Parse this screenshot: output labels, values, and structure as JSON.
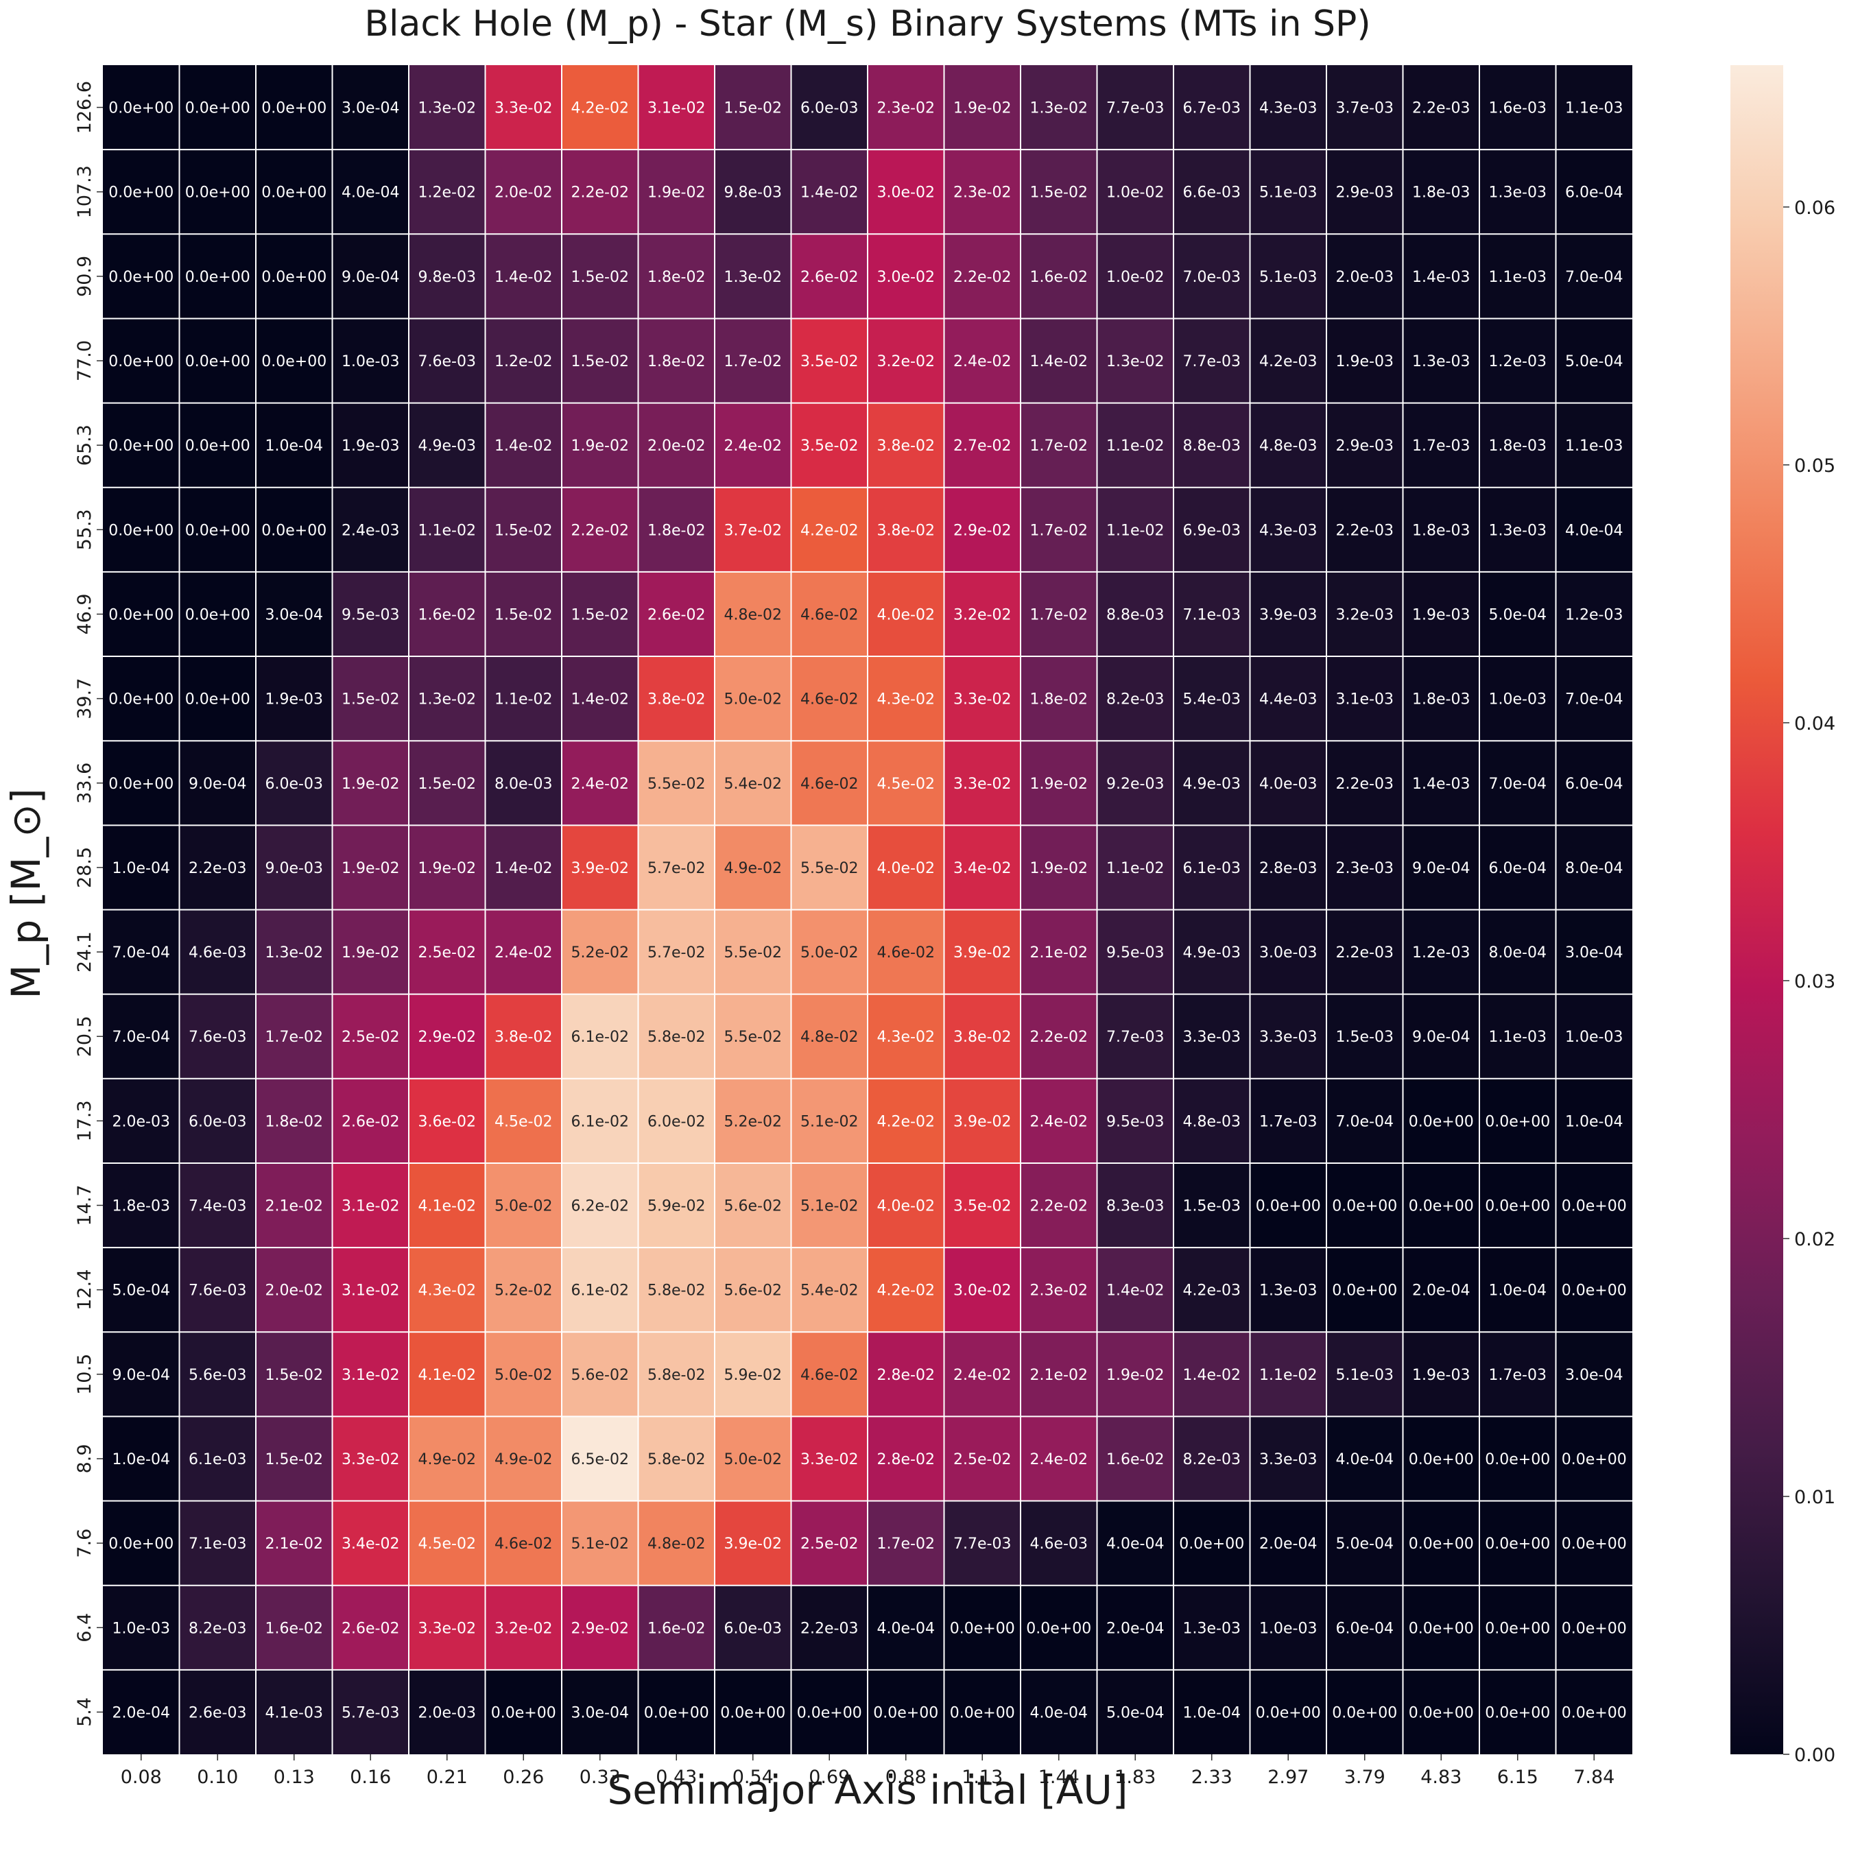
{
  "chart_data": {
    "type": "heatmap",
    "title": "Black Hole (M_p)  - Star (M_s) Binary Systems (MTs in SP)",
    "xlabel": "Semimajor Axis inital [AU]",
    "ylabel": "M_p  [M_⊙]",
    "x_categories": [
      "0.08",
      "0.10",
      "0.13",
      "0.16",
      "0.21",
      "0.26",
      "0.33",
      "0.43",
      "0.54",
      "0.69",
      "0.88",
      "1.13",
      "1.44",
      "1.83",
      "2.33",
      "2.97",
      "3.79",
      "4.83",
      "6.15",
      "7.84"
    ],
    "y_categories": [
      "126.6",
      "107.3",
      "90.9",
      "77.0",
      "65.3",
      "55.3",
      "46.9",
      "39.7",
      "33.6",
      "28.5",
      "24.1",
      "20.5",
      "17.3",
      "14.7",
      "12.4",
      "10.5",
      "8.9",
      "7.6",
      "6.4",
      "5.4"
    ],
    "values": [
      [
        "0.0e+00",
        "0.0e+00",
        "0.0e+00",
        "3.0e-04",
        "1.3e-02",
        "3.3e-02",
        "4.2e-02",
        "3.1e-02",
        "1.5e-02",
        "6.0e-03",
        "2.3e-02",
        "1.9e-02",
        "1.3e-02",
        "7.7e-03",
        "6.7e-03",
        "4.3e-03",
        "3.7e-03",
        "2.2e-03",
        "1.6e-03",
        "1.1e-03"
      ],
      [
        "0.0e+00",
        "0.0e+00",
        "0.0e+00",
        "4.0e-04",
        "1.2e-02",
        "2.0e-02",
        "2.2e-02",
        "1.9e-02",
        "9.8e-03",
        "1.4e-02",
        "3.0e-02",
        "2.3e-02",
        "1.5e-02",
        "1.0e-02",
        "6.6e-03",
        "5.1e-03",
        "2.9e-03",
        "1.8e-03",
        "1.3e-03",
        "6.0e-04"
      ],
      [
        "0.0e+00",
        "0.0e+00",
        "0.0e+00",
        "9.0e-04",
        "9.8e-03",
        "1.4e-02",
        "1.5e-02",
        "1.8e-02",
        "1.3e-02",
        "2.6e-02",
        "3.0e-02",
        "2.2e-02",
        "1.6e-02",
        "1.0e-02",
        "7.0e-03",
        "5.1e-03",
        "2.0e-03",
        "1.4e-03",
        "1.1e-03",
        "7.0e-04"
      ],
      [
        "0.0e+00",
        "0.0e+00",
        "0.0e+00",
        "1.0e-03",
        "7.6e-03",
        "1.2e-02",
        "1.5e-02",
        "1.8e-02",
        "1.7e-02",
        "3.5e-02",
        "3.2e-02",
        "2.4e-02",
        "1.4e-02",
        "1.3e-02",
        "7.7e-03",
        "4.2e-03",
        "1.9e-03",
        "1.3e-03",
        "1.2e-03",
        "5.0e-04"
      ],
      [
        "0.0e+00",
        "0.0e+00",
        "1.0e-04",
        "1.9e-03",
        "4.9e-03",
        "1.4e-02",
        "1.9e-02",
        "2.0e-02",
        "2.4e-02",
        "3.5e-02",
        "3.8e-02",
        "2.7e-02",
        "1.7e-02",
        "1.1e-02",
        "8.8e-03",
        "4.8e-03",
        "2.9e-03",
        "1.7e-03",
        "1.8e-03",
        "1.1e-03"
      ],
      [
        "0.0e+00",
        "0.0e+00",
        "0.0e+00",
        "2.4e-03",
        "1.1e-02",
        "1.5e-02",
        "2.2e-02",
        "1.8e-02",
        "3.7e-02",
        "4.2e-02",
        "3.8e-02",
        "2.9e-02",
        "1.7e-02",
        "1.1e-02",
        "6.9e-03",
        "4.3e-03",
        "2.2e-03",
        "1.8e-03",
        "1.3e-03",
        "4.0e-04"
      ],
      [
        "0.0e+00",
        "0.0e+00",
        "3.0e-04",
        "9.5e-03",
        "1.6e-02",
        "1.5e-02",
        "1.5e-02",
        "2.6e-02",
        "4.8e-02",
        "4.6e-02",
        "4.0e-02",
        "3.2e-02",
        "1.7e-02",
        "8.8e-03",
        "7.1e-03",
        "3.9e-03",
        "3.2e-03",
        "1.9e-03",
        "5.0e-04",
        "1.2e-03"
      ],
      [
        "0.0e+00",
        "0.0e+00",
        "1.9e-03",
        "1.5e-02",
        "1.3e-02",
        "1.1e-02",
        "1.4e-02",
        "3.8e-02",
        "5.0e-02",
        "4.6e-02",
        "4.3e-02",
        "3.3e-02",
        "1.8e-02",
        "8.2e-03",
        "5.4e-03",
        "4.4e-03",
        "3.1e-03",
        "1.8e-03",
        "1.0e-03",
        "7.0e-04"
      ],
      [
        "0.0e+00",
        "9.0e-04",
        "6.0e-03",
        "1.9e-02",
        "1.5e-02",
        "8.0e-03",
        "2.4e-02",
        "5.5e-02",
        "5.4e-02",
        "4.6e-02",
        "4.5e-02",
        "3.3e-02",
        "1.9e-02",
        "9.2e-03",
        "4.9e-03",
        "4.0e-03",
        "2.2e-03",
        "1.4e-03",
        "7.0e-04",
        "6.0e-04"
      ],
      [
        "1.0e-04",
        "2.2e-03",
        "9.0e-03",
        "1.9e-02",
        "1.9e-02",
        "1.4e-02",
        "3.9e-02",
        "5.7e-02",
        "4.9e-02",
        "5.5e-02",
        "4.0e-02",
        "3.4e-02",
        "1.9e-02",
        "1.1e-02",
        "6.1e-03",
        "2.8e-03",
        "2.3e-03",
        "9.0e-04",
        "6.0e-04",
        "8.0e-04"
      ],
      [
        "7.0e-04",
        "4.6e-03",
        "1.3e-02",
        "1.9e-02",
        "2.5e-02",
        "2.4e-02",
        "5.2e-02",
        "5.7e-02",
        "5.5e-02",
        "5.0e-02",
        "4.6e-02",
        "3.9e-02",
        "2.1e-02",
        "9.5e-03",
        "4.9e-03",
        "3.0e-03",
        "2.2e-03",
        "1.2e-03",
        "8.0e-04",
        "3.0e-04"
      ],
      [
        "7.0e-04",
        "7.6e-03",
        "1.7e-02",
        "2.5e-02",
        "2.9e-02",
        "3.8e-02",
        "6.1e-02",
        "5.8e-02",
        "5.5e-02",
        "4.8e-02",
        "4.3e-02",
        "3.8e-02",
        "2.2e-02",
        "7.7e-03",
        "3.3e-03",
        "3.3e-03",
        "1.5e-03",
        "9.0e-04",
        "1.1e-03",
        "1.0e-03"
      ],
      [
        "2.0e-03",
        "6.0e-03",
        "1.8e-02",
        "2.6e-02",
        "3.6e-02",
        "4.5e-02",
        "6.1e-02",
        "6.0e-02",
        "5.2e-02",
        "5.1e-02",
        "4.2e-02",
        "3.9e-02",
        "2.4e-02",
        "9.5e-03",
        "4.8e-03",
        "1.7e-03",
        "7.0e-04",
        "0.0e+00",
        "0.0e+00",
        "1.0e-04"
      ],
      [
        "1.8e-03",
        "7.4e-03",
        "2.1e-02",
        "3.1e-02",
        "4.1e-02",
        "5.0e-02",
        "6.2e-02",
        "5.9e-02",
        "5.6e-02",
        "5.1e-02",
        "4.0e-02",
        "3.5e-02",
        "2.2e-02",
        "8.3e-03",
        "1.5e-03",
        "0.0e+00",
        "0.0e+00",
        "0.0e+00",
        "0.0e+00",
        "0.0e+00"
      ],
      [
        "5.0e-04",
        "7.6e-03",
        "2.0e-02",
        "3.1e-02",
        "4.3e-02",
        "5.2e-02",
        "6.1e-02",
        "5.8e-02",
        "5.6e-02",
        "5.4e-02",
        "4.2e-02",
        "3.0e-02",
        "2.3e-02",
        "1.4e-02",
        "4.2e-03",
        "1.3e-03",
        "0.0e+00",
        "2.0e-04",
        "1.0e-04",
        "0.0e+00"
      ],
      [
        "9.0e-04",
        "5.6e-03",
        "1.5e-02",
        "3.1e-02",
        "4.1e-02",
        "5.0e-02",
        "5.6e-02",
        "5.8e-02",
        "5.9e-02",
        "4.6e-02",
        "2.8e-02",
        "2.4e-02",
        "2.1e-02",
        "1.9e-02",
        "1.4e-02",
        "1.1e-02",
        "5.1e-03",
        "1.9e-03",
        "1.7e-03",
        "3.0e-04"
      ],
      [
        "1.0e-04",
        "6.1e-03",
        "1.5e-02",
        "3.3e-02",
        "4.9e-02",
        "4.9e-02",
        "6.5e-02",
        "5.8e-02",
        "5.0e-02",
        "3.3e-02",
        "2.8e-02",
        "2.5e-02",
        "2.4e-02",
        "1.6e-02",
        "8.2e-03",
        "3.3e-03",
        "4.0e-04",
        "0.0e+00",
        "0.0e+00",
        "0.0e+00"
      ],
      [
        "0.0e+00",
        "7.1e-03",
        "2.1e-02",
        "3.4e-02",
        "4.5e-02",
        "4.6e-02",
        "5.1e-02",
        "4.8e-02",
        "3.9e-02",
        "2.5e-02",
        "1.7e-02",
        "7.7e-03",
        "4.6e-03",
        "4.0e-04",
        "0.0e+00",
        "2.0e-04",
        "5.0e-04",
        "0.0e+00",
        "0.0e+00",
        "0.0e+00"
      ],
      [
        "1.0e-03",
        "8.2e-03",
        "1.6e-02",
        "2.6e-02",
        "3.3e-02",
        "3.2e-02",
        "2.9e-02",
        "1.6e-02",
        "6.0e-03",
        "2.2e-03",
        "4.0e-04",
        "0.0e+00",
        "0.0e+00",
        "2.0e-04",
        "1.3e-03",
        "1.0e-03",
        "6.0e-04",
        "0.0e+00",
        "0.0e+00",
        "0.0e+00"
      ],
      [
        "2.0e-04",
        "2.6e-03",
        "4.1e-03",
        "5.7e-03",
        "2.0e-03",
        "0.0e+00",
        "3.0e-04",
        "0.0e+00",
        "0.0e+00",
        "0.0e+00",
        "0.0e+00",
        "0.0e+00",
        "4.0e-04",
        "5.0e-04",
        "1.0e-04",
        "0.0e+00",
        "0.0e+00",
        "0.0e+00",
        "0.0e+00",
        "0.0e+00"
      ]
    ],
    "colorbar": {
      "range": [
        0,
        0.0655
      ],
      "ticks": [
        0,
        0.01,
        0.02,
        0.03,
        0.04,
        0.05,
        0.06
      ],
      "tick_labels": [
        "0.00",
        "0.01",
        "0.02",
        "0.03",
        "0.04",
        "0.05",
        "0.06"
      ],
      "colormap": "rocket",
      "stops": [
        "#03051a",
        "#221331",
        "#451c47",
        "#6a1f56",
        "#921c5b",
        "#b91657",
        "#dc2e43",
        "#eb5a3a",
        "#f1825c",
        "#f5a886",
        "#f8cdb0",
        "#faebdd"
      ]
    },
    "grid_line_color": "#ffffff"
  }
}
